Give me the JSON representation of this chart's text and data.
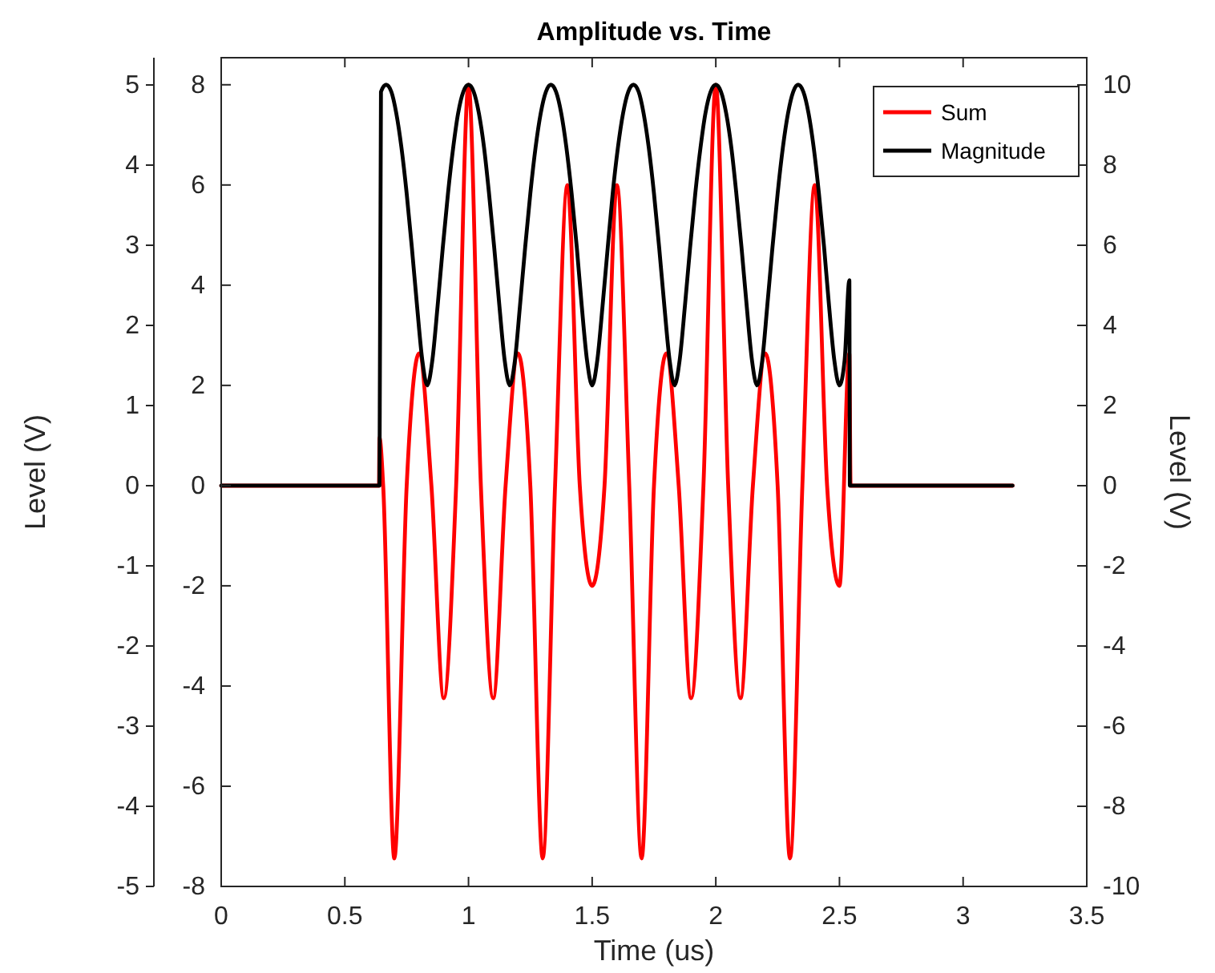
{
  "chart_data": {
    "type": "line",
    "title": "Amplitude vs. Time",
    "xlabel": "Time (us)",
    "ylabel": "Level (V)",
    "y2label": "Level (V)",
    "legend": "top right",
    "xlim": [
      0,
      3.5
    ],
    "xticks": [
      0,
      0.5,
      1,
      1.5,
      2,
      2.5,
      3,
      3.5
    ],
    "ylim": [
      -8,
      8.54
    ],
    "yticks": [
      -8,
      -6,
      -4,
      -2,
      0,
      2,
      4,
      6,
      8
    ],
    "y2lim": [
      -10,
      10.68
    ],
    "y2ticks": [
      -10,
      -8,
      -6,
      -4,
      -2,
      0,
      2,
      4,
      6,
      8,
      10
    ],
    "y3lim": [
      -5,
      5.34
    ],
    "y3ticks": [
      -5,
      -4,
      -3,
      -2,
      -1,
      0,
      1,
      2,
      3,
      4,
      5
    ],
    "series": [
      {
        "name": "Sum",
        "color": "#ff0000",
        "axis": "y2",
        "x": [
          0,
          0.638,
          0.64,
          0.655,
          0.7,
          0.75,
          0.8,
          0.85,
          0.9,
          0.95,
          1.0,
          1.05,
          1.1,
          1.15,
          1.2,
          1.25,
          1.3,
          1.35,
          1.4,
          1.45,
          1.5,
          1.55,
          1.6,
          1.65,
          1.7,
          1.75,
          1.8,
          1.85,
          1.9,
          1.95,
          2.0,
          2.05,
          2.1,
          2.15,
          2.2,
          2.25,
          2.3,
          2.35,
          2.4,
          2.45,
          2.5,
          2.54,
          2.545,
          3.2
        ],
        "values": [
          0,
          0,
          1.2,
          0,
          -9.3,
          0,
          3.3,
          0,
          -5.3,
          0,
          10,
          0,
          -5.3,
          0,
          3.3,
          0,
          -9.3,
          0,
          7.5,
          0,
          -2.5,
          0,
          7.5,
          0,
          -9.3,
          0,
          3.3,
          0,
          -5.3,
          0,
          10,
          0,
          -5.3,
          0,
          3.3,
          0,
          -9.3,
          0,
          7.5,
          0,
          -2.5,
          3.3,
          0,
          0
        ]
      },
      {
        "name": "Magnitude",
        "color": "#000000",
        "axis": "y",
        "x": [
          0,
          0.638,
          0.64,
          0.646,
          0.667,
          0.688,
          0.708,
          0.729,
          0.75,
          0.771,
          0.792,
          0.813,
          0.833,
          0.854,
          0.875,
          0.896,
          0.917,
          0.938,
          0.958,
          0.979,
          1.0,
          1.021,
          1.042,
          1.063,
          1.083,
          1.104,
          1.125,
          1.146,
          1.167,
          1.188,
          1.208,
          1.229,
          1.25,
          1.271,
          1.292,
          1.313,
          1.333,
          1.354,
          1.375,
          1.396,
          1.417,
          1.438,
          1.458,
          1.479,
          1.5,
          1.521,
          1.542,
          1.563,
          1.583,
          1.604,
          1.625,
          1.646,
          1.667,
          1.688,
          1.708,
          1.729,
          1.75,
          1.771,
          1.792,
          1.813,
          1.833,
          1.854,
          1.875,
          1.896,
          1.917,
          1.938,
          1.958,
          1.979,
          2.0,
          2.021,
          2.042,
          2.063,
          2.083,
          2.104,
          2.125,
          2.146,
          2.167,
          2.188,
          2.208,
          2.229,
          2.25,
          2.271,
          2.292,
          2.313,
          2.333,
          2.354,
          2.375,
          2.396,
          2.417,
          2.438,
          2.458,
          2.479,
          2.5,
          2.521,
          2.54,
          2.542,
          3.2
        ],
        "values": [
          0,
          0,
          0,
          7.86,
          8,
          7.86,
          7.43,
          6.74,
          5.83,
          4.75,
          3.58,
          2.51,
          2,
          2.51,
          3.58,
          4.75,
          5.83,
          6.74,
          7.43,
          7.86,
          8,
          7.86,
          7.43,
          6.74,
          5.83,
          4.75,
          3.58,
          2.51,
          2,
          2.51,
          3.58,
          4.75,
          5.83,
          6.74,
          7.43,
          7.86,
          8,
          7.86,
          7.43,
          6.74,
          5.83,
          4.75,
          3.58,
          2.51,
          2,
          2.51,
          3.58,
          4.75,
          5.83,
          6.74,
          7.43,
          7.86,
          8,
          7.86,
          7.43,
          6.74,
          5.83,
          4.75,
          3.58,
          2.51,
          2,
          2.51,
          3.58,
          4.75,
          5.83,
          6.74,
          7.43,
          7.86,
          8,
          7.86,
          7.43,
          6.74,
          5.83,
          4.75,
          3.58,
          2.51,
          2,
          2.51,
          3.58,
          4.75,
          5.83,
          6.74,
          7.43,
          7.86,
          8,
          7.86,
          7.43,
          6.74,
          5.83,
          4.75,
          3.58,
          2.51,
          2,
          2.51,
          4.1,
          0,
          0
        ]
      }
    ]
  }
}
